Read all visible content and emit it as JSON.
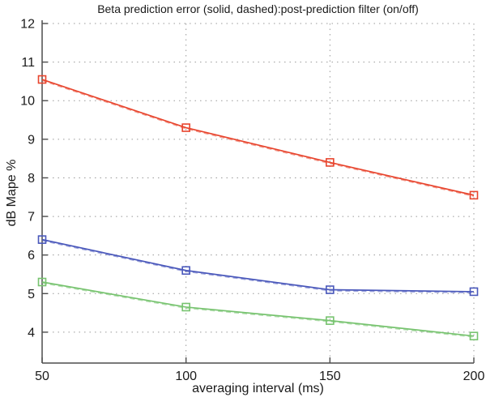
{
  "figure": {
    "background": "#ffffff"
  },
  "chart_data": {
    "type": "line",
    "title": "Beta prediction error (solid, dashed):post-prediction filter (on/off)",
    "xlabel": "averaging interval (ms)",
    "ylabel": "dB Mape %",
    "x": [
      50,
      100,
      150,
      200
    ],
    "xlim": [
      50,
      200
    ],
    "ylim": [
      3.2,
      12
    ],
    "xticks": [
      50,
      100,
      150,
      200
    ],
    "yticks": [
      4,
      5,
      6,
      7,
      8,
      9,
      10,
      11,
      12
    ],
    "grid": true,
    "grid_style": "dotted",
    "legend_position": "none",
    "marker": "square",
    "line_styles": [
      "solid",
      "dashed"
    ],
    "series": [
      {
        "name": "red",
        "color": "#e8452e",
        "values": [
          10.55,
          9.3,
          8.4,
          7.55
        ]
      },
      {
        "name": "blue",
        "color": "#4a58bb",
        "values": [
          6.4,
          5.6,
          5.1,
          5.05
        ]
      },
      {
        "name": "green",
        "color": "#77c36f",
        "values": [
          5.3,
          4.65,
          4.3,
          3.9
        ]
      }
    ],
    "colors": {
      "grid": "#999999",
      "axis": "#4d4d4d",
      "text": "#1a1a1a"
    }
  }
}
